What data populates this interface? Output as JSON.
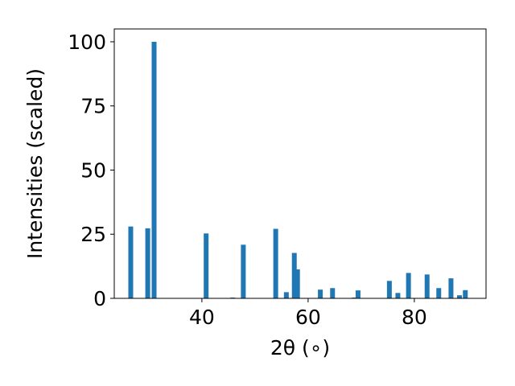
{
  "chart_data": {
    "type": "bar",
    "xlabel": "2θ (∘)",
    "ylabel": "Intensities (scaled)",
    "xlim": [
      23.5,
      93.5
    ],
    "ylim": [
      0,
      105
    ],
    "xticks": [
      40,
      60,
      80
    ],
    "yticks": [
      0,
      25,
      50,
      75,
      100
    ],
    "bar_color": "#1f77b4",
    "x": [
      26.6,
      29.8,
      31.0,
      40.8,
      45.8,
      47.8,
      53.9,
      55.9,
      57.4,
      58.0,
      62.3,
      64.6,
      68.7,
      69.4,
      75.3,
      76.9,
      78.9,
      82.4,
      84.6,
      86.9,
      88.5,
      89.6
    ],
    "values": [
      28.0,
      27.3,
      100.0,
      25.3,
      0.3,
      20.9,
      27.1,
      2.4,
      17.7,
      11.3,
      3.4,
      4.0,
      0.3,
      3.1,
      6.8,
      2.1,
      9.9,
      9.3,
      4.0,
      7.8,
      1.2,
      3.2
    ]
  }
}
